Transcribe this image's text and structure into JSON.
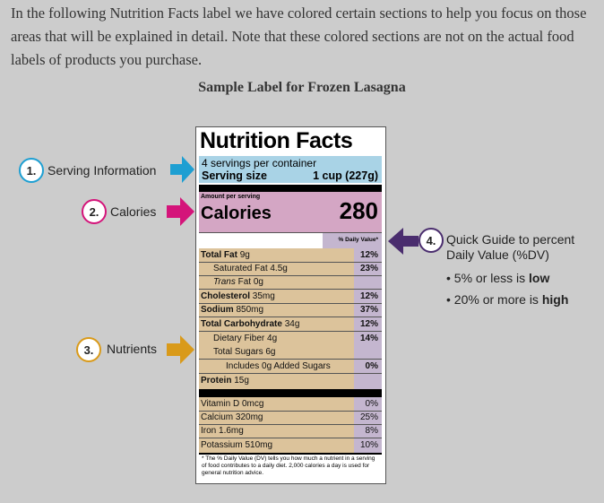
{
  "intro": "In the following Nutrition Facts label we have colored certain sections to help you focus on those areas that will be explained in detail. Note that these colored sections are not on the actual food labels of products you purchase.",
  "subtitle": "Sample Label for Frozen Lasagna",
  "label": {
    "title": "Nutrition Facts",
    "servings": "4 servings per container",
    "serving_size_label": "Serving size",
    "serving_size_value": "1 cup (227g)",
    "amount_per_serving": "Amount per serving",
    "calories_label": "Calories",
    "calories_value": "280",
    "dv_header": "% Daily Value*",
    "nutrients": [
      {
        "bold": "Total Fat",
        "rest": " 9g",
        "pct": "12%"
      },
      {
        "bold": "",
        "rest": "Saturated Fat 4.5g",
        "pct": "23%"
      },
      {
        "italic": "Trans",
        "rest": " Fat 0g",
        "pct": ""
      },
      {
        "bold": "Cholesterol",
        "rest": " 35mg",
        "pct": "12%"
      },
      {
        "bold": "Sodium",
        "rest": " 850mg",
        "pct": "37%"
      },
      {
        "bold": "Total Carbohydrate",
        "rest": " 34g",
        "pct": "12%"
      },
      {
        "bold": "",
        "rest": "Dietary Fiber 4g",
        "pct": "14%"
      },
      {
        "bold": "",
        "rest": "Total Sugars 6g",
        "pct": ""
      },
      {
        "bold": "",
        "rest": "Includes 0g Added Sugars",
        "pct": "0%"
      },
      {
        "bold": "Protein",
        "rest": " 15g",
        "pct": ""
      }
    ],
    "vitamins": [
      {
        "name": "Vitamin D 0mcg",
        "pct": "0%"
      },
      {
        "name": "Calcium 320mg",
        "pct": "25%"
      },
      {
        "name": "Iron 1.6mg",
        "pct": "8%"
      },
      {
        "name": "Potassium 510mg",
        "pct": "10%"
      }
    ],
    "footnote": "* The % Daily Value (DV) tells you how much a nutrient in a serving of food contributes to a daily diet. 2,000 calories a day is used for general nutrition advice."
  },
  "callouts": {
    "c1": {
      "num": "1.",
      "text": "Serving Information",
      "color": "#1e9fd2"
    },
    "c2": {
      "num": "2.",
      "text": "Calories",
      "color": "#d4147a"
    },
    "c3": {
      "num": "3.",
      "text": "Nutrients",
      "color": "#d99a1a"
    },
    "c4": {
      "num": "4.",
      "text_line1": "Quick Guide to percent",
      "text_line2": "Daily Value (%DV)",
      "color": "#4a2d6e"
    }
  },
  "guide": {
    "low_prefix": "• 5% or less is ",
    "low_word": "low",
    "high_prefix": "• 20% or more is ",
    "high_word": "high"
  },
  "colors": {
    "serving": "#a9d3e6",
    "calories": "#d4a6c4",
    "nutrients": "#dcc39b",
    "dv": "#c4b6cf"
  }
}
